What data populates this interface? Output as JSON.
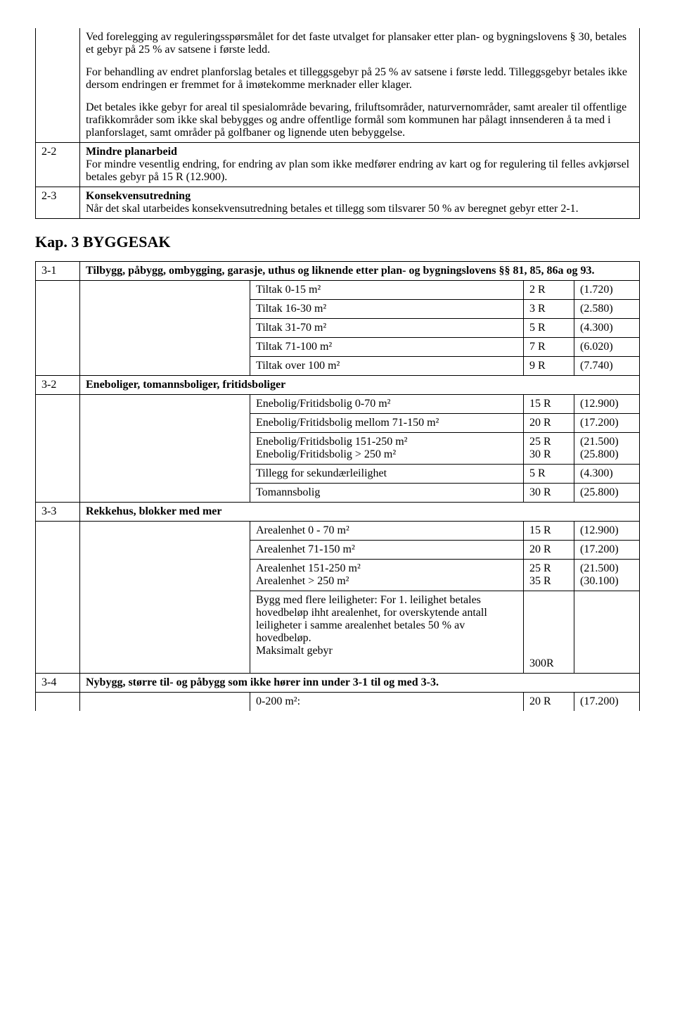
{
  "doc": {
    "font_family": "Times New Roman",
    "font_size_pt": 12,
    "background_color": "#ffffff",
    "text_color": "#000000",
    "border_color": "#000000"
  },
  "table1": {
    "intro": {
      "p1": "Ved forelegging av reguleringsspørsmålet for det faste utvalget for plansaker etter plan- og bygningslovens § 30, betales et gebyr på 25 % av satsene i første ledd.",
      "p2": "For behandling av endret planforslag betales et tilleggsgebyr på 25 % av satsene i første ledd. Tilleggsgebyr betales ikke dersom endringen er fremmet for å imøtekomme merknader eller klager.",
      "p3": "Det betales ikke gebyr for areal til spesialområde bevaring, friluftsområder, naturvernområder, samt arealer til offentlige trafikkområder som ikke skal bebygges og andre offentlige formål som kommunen har pålagt innsenderen å ta med i planforslaget, samt områder på golfbaner og lignende uten bebyggelse."
    },
    "row1": {
      "num": "2-2",
      "title": "Mindre planarbeid",
      "body": "For mindre vesentlig endring, for endring av plan som ikke medfører endring av kart og for regulering til felles avkjørsel betales gebyr på 15 R (12.900)."
    },
    "row2": {
      "num": "2-3",
      "title": "Konsekvensutredning",
      "body": "Når det skal utarbeides konsekvensutredning betales et tillegg som tilsvarer 50 % av beregnet gebyr etter 2-1."
    }
  },
  "kap3_heading": "Kap. 3  BYGGESAK",
  "table2": {
    "s31": {
      "num": "3-1",
      "title": "Tilbygg, påbygg, ombygging, garasje, uthus og liknende etter plan- og bygningslovens §§ 81, 85, 86a og 93.",
      "rows": [
        {
          "label": "Tiltak 0-15 m²",
          "r": "2 R",
          "v": "(1.720)"
        },
        {
          "label": "Tiltak 16-30 m²",
          "r": "3 R",
          "v": "(2.580)"
        },
        {
          "label": "Tiltak 31-70 m²",
          "r": "5 R",
          "v": "(4.300)"
        },
        {
          "label": "Tiltak 71-100 m²",
          "r": "7 R",
          "v": "(6.020)"
        },
        {
          "label": "Tiltak over 100 m²",
          "r": "9 R",
          "v": "(7.740)"
        }
      ]
    },
    "s32": {
      "num": "3-2",
      "title": "Eneboliger, tomannsboliger, fritidsboliger",
      "rows": [
        {
          "label": "Enebolig/Fritidsbolig 0-70 m²",
          "r": "15 R",
          "v": "(12.900)"
        },
        {
          "label": "Enebolig/Fritidsbolig mellom 71-150 m²",
          "r": "20 R",
          "v": "(17.200)"
        },
        {
          "label": "Enebolig/Fritidsbolig 151-250 m²\nEnebolig/Fritidsbolig > 250 m²",
          "r": "25 R\n30 R",
          "v": "(21.500)\n(25.800)"
        },
        {
          "label": "Tillegg for sekundærleilighet",
          "r": "5 R",
          "v": "(4.300)"
        },
        {
          "label": "Tomannsbolig",
          "r": "30 R",
          "v": "(25.800)"
        }
      ]
    },
    "s33": {
      "num": "3-3",
      "title": "Rekkehus, blokker med mer",
      "rows": [
        {
          "label": "Arealenhet 0 - 70 m²",
          "r": "15 R",
          "v": "(12.900)"
        },
        {
          "label": "Arealenhet 71-150 m²",
          "r": "20 R",
          "v": "(17.200)"
        },
        {
          "label": "Arealenhet 151-250 m²\nArealenhet > 250 m²",
          "r": "25 R\n35 R",
          "v": "(21.500)\n(30.100)"
        },
        {
          "label": "Bygg med flere leiligheter: For 1. leilighet betales hovedbeløp ihht arealenhet, for overskytende antall leiligheter i samme arealenhet betales 50 % av hovedbeløp.\nMaksimalt gebyr",
          "r": "\n\n\n\n\n300R",
          "v": ""
        }
      ]
    },
    "s34": {
      "num": "3-4",
      "title": "Nybygg, større til- og påbygg som ikke hører inn under 3-1 til og med 3-3.",
      "row": {
        "label": "0-200 m²:",
        "r": "20 R",
        "v": "(17.200)"
      }
    }
  }
}
